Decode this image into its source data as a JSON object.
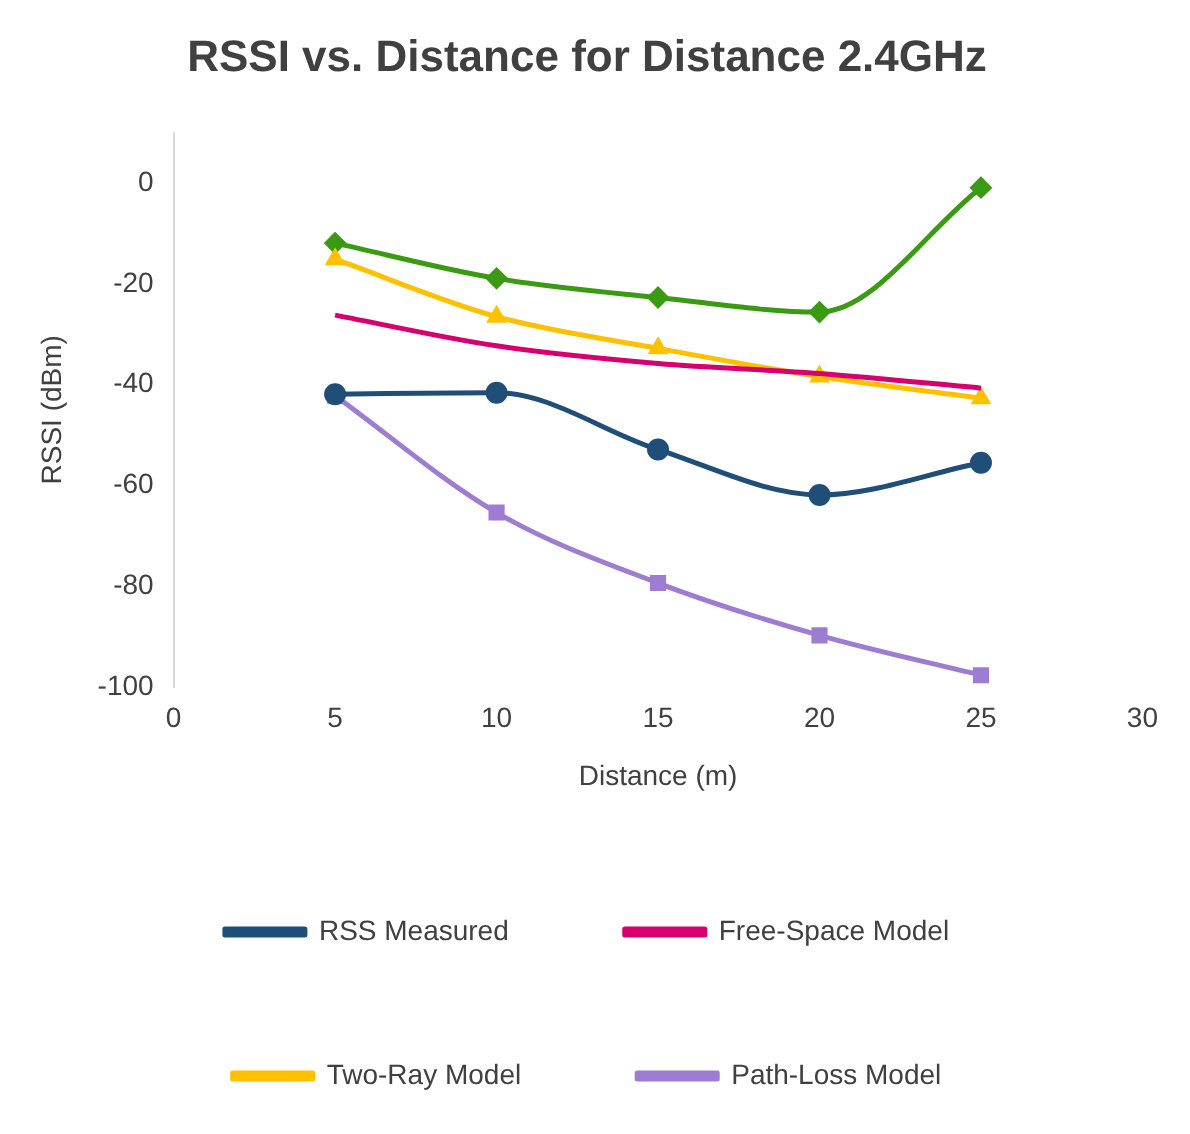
{
  "chart_data": {
    "type": "line",
    "title": "RSSI vs. Distance for Distance 2.4GHz",
    "xlabel": "Distance (m)",
    "ylabel": "RSSI (dBm)",
    "x": [
      5,
      10,
      15,
      20,
      25
    ],
    "series": [
      {
        "name": "RSS Measured",
        "color": "#1f4e79",
        "marker": "circle",
        "values": [
          -41.9,
          -41.6,
          -52.9,
          -61.9,
          -55.5
        ]
      },
      {
        "name": "Free-Space Model",
        "color": "#d6006f",
        "marker": "none",
        "values": [
          -26.2,
          -32.3,
          -35.8,
          -37.8,
          -40.7
        ]
      },
      {
        "name": "Two-Ray Model",
        "color": "#ffc000",
        "marker": "triangle",
        "values": [
          -15.1,
          -26.5,
          -32.8,
          -38.4,
          -42.7
        ]
      },
      {
        "name": "Path-Loss Model",
        "color": "#9e7cd1",
        "marker": "square",
        "values": [
          -42.2,
          -65.4,
          -79.4,
          -89.8,
          -97.7
        ]
      },
      {
        "color": "#3a9a12",
        "marker": "diamond",
        "values": [
          -11.9,
          -18.9,
          -22.7,
          -25.6,
          -0.9
        ]
      }
    ],
    "xlim": [
      0,
      30
    ],
    "xticks": [
      0,
      5,
      10,
      15,
      20,
      25,
      30
    ],
    "ylim": [
      -100,
      10
    ],
    "yticks": [
      -100,
      -80,
      -60,
      -40,
      -20,
      0
    ],
    "grid": false,
    "legend": "bottom"
  }
}
